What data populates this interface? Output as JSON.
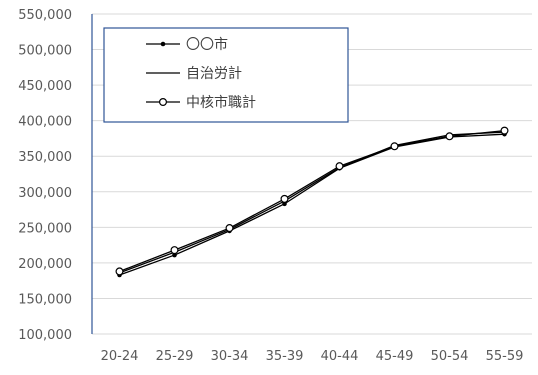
{
  "chart_data": {
    "type": "line",
    "title": "",
    "xlabel": "",
    "ylabel": "",
    "categories": [
      "20-24",
      "25-29",
      "30-34",
      "35-39",
      "40-44",
      "45-49",
      "50-54",
      "55-59"
    ],
    "ylim": [
      100000,
      550000
    ],
    "yticks": [
      100000,
      150000,
      200000,
      250000,
      300000,
      350000,
      400000,
      450000,
      500000,
      550000
    ],
    "ytick_labels": [
      "100,000",
      "150,000",
      "200,000",
      "250,000",
      "300,000",
      "350,000",
      "400,000",
      "450,000",
      "500,000",
      "550,000"
    ],
    "grid": "horizontal",
    "legend_position": "top-left",
    "series": [
      {
        "name": "〇〇市",
        "marker": "filled-dot",
        "color": "#000000",
        "values": [
          183000,
          211000,
          245000,
          283000,
          333000,
          363000,
          377000,
          381000
        ]
      },
      {
        "name": "自治労計",
        "marker": "none",
        "color": "#000000",
        "values": [
          186000,
          215000,
          247000,
          287000,
          334000,
          365000,
          380000,
          384000
        ]
      },
      {
        "name": "中核市職計",
        "marker": "open-circle",
        "color": "#000000",
        "values": [
          188000,
          218000,
          249000,
          290000,
          336000,
          364000,
          378000,
          386000
        ]
      }
    ]
  }
}
